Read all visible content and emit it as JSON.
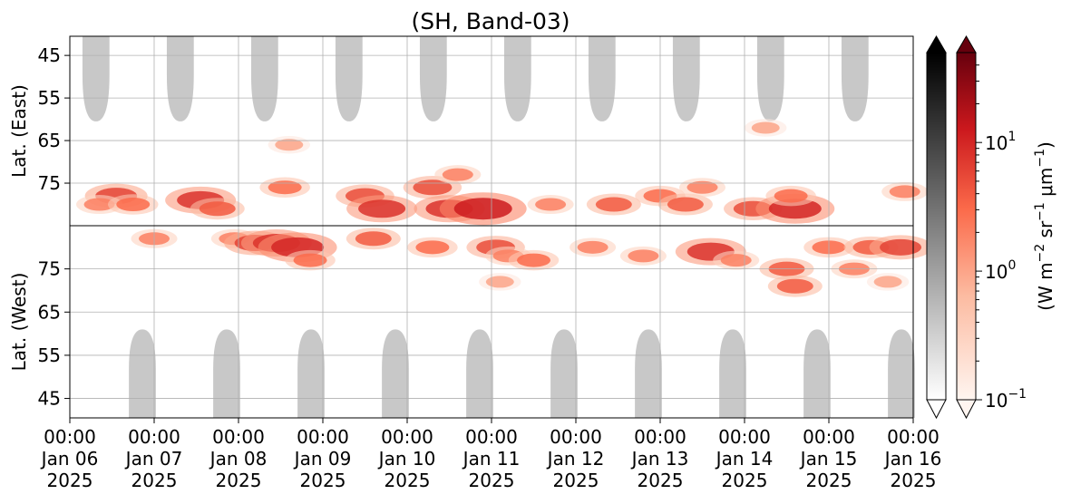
{
  "chart_data": {
    "type": "heatmap",
    "title": "(SH, Band-03)",
    "ylabel_top": "Lat. (East)",
    "ylabel_bottom": "Lat. (West)",
    "x_ticks": [
      {
        "day": 0,
        "time": "00:00",
        "date": "Jan 06",
        "year": "2025"
      },
      {
        "day": 1,
        "time": "00:00",
        "date": "Jan 07",
        "year": "2025"
      },
      {
        "day": 2,
        "time": "00:00",
        "date": "Jan 08",
        "year": "2025"
      },
      {
        "day": 3,
        "time": "00:00",
        "date": "Jan 09",
        "year": "2025"
      },
      {
        "day": 4,
        "time": "00:00",
        "date": "Jan 10",
        "year": "2025"
      },
      {
        "day": 5,
        "time": "00:00",
        "date": "Jan 11",
        "year": "2025"
      },
      {
        "day": 6,
        "time": "00:00",
        "date": "Jan 12",
        "year": "2025"
      },
      {
        "day": 7,
        "time": "00:00",
        "date": "Jan 13",
        "year": "2025"
      },
      {
        "day": 8,
        "time": "00:00",
        "date": "Jan 14",
        "year": "2025"
      },
      {
        "day": 9,
        "time": "00:00",
        "date": "Jan 15",
        "year": "2025"
      },
      {
        "day": 10,
        "time": "00:00",
        "date": "Jan 16",
        "year": "2025"
      }
    ],
    "y_ticks_east": [
      "45",
      "55",
      "65",
      "75"
    ],
    "y_ticks_east_values": [
      45,
      55,
      65,
      75
    ],
    "y_ticks_west": [
      "75",
      "65",
      "55",
      "45"
    ],
    "y_ticks_west_values": [
      75,
      65,
      55,
      45
    ],
    "east_lat_range": [
      40.5,
      85
    ],
    "west_lat_range": [
      85,
      40.5
    ],
    "colorbar": {
      "label_parts": [
        "(W m",
        "−2",
        " sr",
        "−1",
        " μm",
        "−1",
        ")"
      ],
      "ticks": [
        {
          "base": "10",
          "exp": "−1",
          "value": 0.1
        },
        {
          "base": "10",
          "exp": "0",
          "value": 1
        },
        {
          "base": "10",
          "exp": "1",
          "value": 10
        }
      ],
      "range": [
        0.1,
        50
      ],
      "scale": "log",
      "grey_cmap": [
        "#ffffff",
        "#000000"
      ],
      "red_cmap": [
        "#fff5f0",
        "#fcbba1",
        "#fb6a4a",
        "#cb181d",
        "#67000d"
      ]
    },
    "grid": true,
    "east_gray_lobes": [
      0.15,
      1.15,
      2.15,
      3.15,
      4.15,
      5.15,
      6.15,
      7.15,
      8.15,
      9.15
    ],
    "west_gray_lobes": [
      0.7,
      1.7,
      2.7,
      3.7,
      4.7,
      5.7,
      6.7,
      7.7,
      8.7,
      9.7
    ],
    "emission_blobs": [
      {
        "day": 0.55,
        "lat": 78,
        "side": "east",
        "v": 6
      },
      {
        "day": 0.35,
        "lat": 80,
        "side": "east",
        "v": 2
      },
      {
        "day": 0.75,
        "lat": 80,
        "side": "east",
        "v": 3
      },
      {
        "day": 1.0,
        "lat": 82,
        "side": "west",
        "v": 2
      },
      {
        "day": 1.55,
        "lat": 79,
        "side": "east",
        "v": 8
      },
      {
        "day": 1.75,
        "lat": 81,
        "side": "east",
        "v": 4
      },
      {
        "day": 1.95,
        "lat": 82,
        "side": "west",
        "v": 2
      },
      {
        "day": 2.2,
        "lat": 81,
        "side": "west",
        "v": 6
      },
      {
        "day": 2.45,
        "lat": 81,
        "side": "west",
        "v": 8
      },
      {
        "day": 2.7,
        "lat": 80,
        "side": "west",
        "v": 10
      },
      {
        "day": 2.55,
        "lat": 76,
        "side": "east",
        "v": 3
      },
      {
        "day": 2.6,
        "lat": 66,
        "side": "east",
        "v": 1
      },
      {
        "day": 2.85,
        "lat": 77,
        "side": "west",
        "v": 3
      },
      {
        "day": 3.5,
        "lat": 78,
        "side": "east",
        "v": 5
      },
      {
        "day": 3.7,
        "lat": 81,
        "side": "east",
        "v": 8
      },
      {
        "day": 3.6,
        "lat": 82,
        "side": "west",
        "v": 4
      },
      {
        "day": 4.3,
        "lat": 76,
        "side": "east",
        "v": 5
      },
      {
        "day": 4.5,
        "lat": 81,
        "side": "east",
        "v": 8
      },
      {
        "day": 4.3,
        "lat": 80,
        "side": "west",
        "v": 3
      },
      {
        "day": 4.6,
        "lat": 73,
        "side": "east",
        "v": 2
      },
      {
        "day": 4.9,
        "lat": 81,
        "side": "east",
        "v": 12
      },
      {
        "day": 5.05,
        "lat": 80,
        "side": "west",
        "v": 5
      },
      {
        "day": 5.2,
        "lat": 78,
        "side": "west",
        "v": 2
      },
      {
        "day": 5.1,
        "lat": 72,
        "side": "west",
        "v": 1
      },
      {
        "day": 5.5,
        "lat": 77,
        "side": "west",
        "v": 3
      },
      {
        "day": 5.7,
        "lat": 80,
        "side": "east",
        "v": 2
      },
      {
        "day": 6.2,
        "lat": 80,
        "side": "west",
        "v": 2
      },
      {
        "day": 6.45,
        "lat": 80,
        "side": "east",
        "v": 4
      },
      {
        "day": 6.8,
        "lat": 78,
        "side": "west",
        "v": 2
      },
      {
        "day": 7.0,
        "lat": 78,
        "side": "east",
        "v": 3
      },
      {
        "day": 7.3,
        "lat": 80,
        "side": "east",
        "v": 4
      },
      {
        "day": 7.6,
        "lat": 79,
        "side": "west",
        "v": 8
      },
      {
        "day": 7.5,
        "lat": 76,
        "side": "east",
        "v": 2
      },
      {
        "day": 7.9,
        "lat": 77,
        "side": "west",
        "v": 2
      },
      {
        "day": 8.1,
        "lat": 81,
        "side": "east",
        "v": 5
      },
      {
        "day": 8.25,
        "lat": 62,
        "side": "east",
        "v": 1
      },
      {
        "day": 8.6,
        "lat": 81,
        "side": "east",
        "v": 10
      },
      {
        "day": 8.55,
        "lat": 78,
        "side": "east",
        "v": 3
      },
      {
        "day": 8.5,
        "lat": 75,
        "side": "west",
        "v": 4
      },
      {
        "day": 8.6,
        "lat": 71,
        "side": "west",
        "v": 4
      },
      {
        "day": 9.0,
        "lat": 80,
        "side": "west",
        "v": 3
      },
      {
        "day": 9.3,
        "lat": 75,
        "side": "west",
        "v": 2
      },
      {
        "day": 9.5,
        "lat": 80,
        "side": "west",
        "v": 4
      },
      {
        "day": 9.85,
        "lat": 80,
        "side": "west",
        "v": 6
      },
      {
        "day": 9.9,
        "lat": 77,
        "side": "east",
        "v": 2
      },
      {
        "day": 9.7,
        "lat": 72,
        "side": "west",
        "v": 1
      }
    ]
  }
}
